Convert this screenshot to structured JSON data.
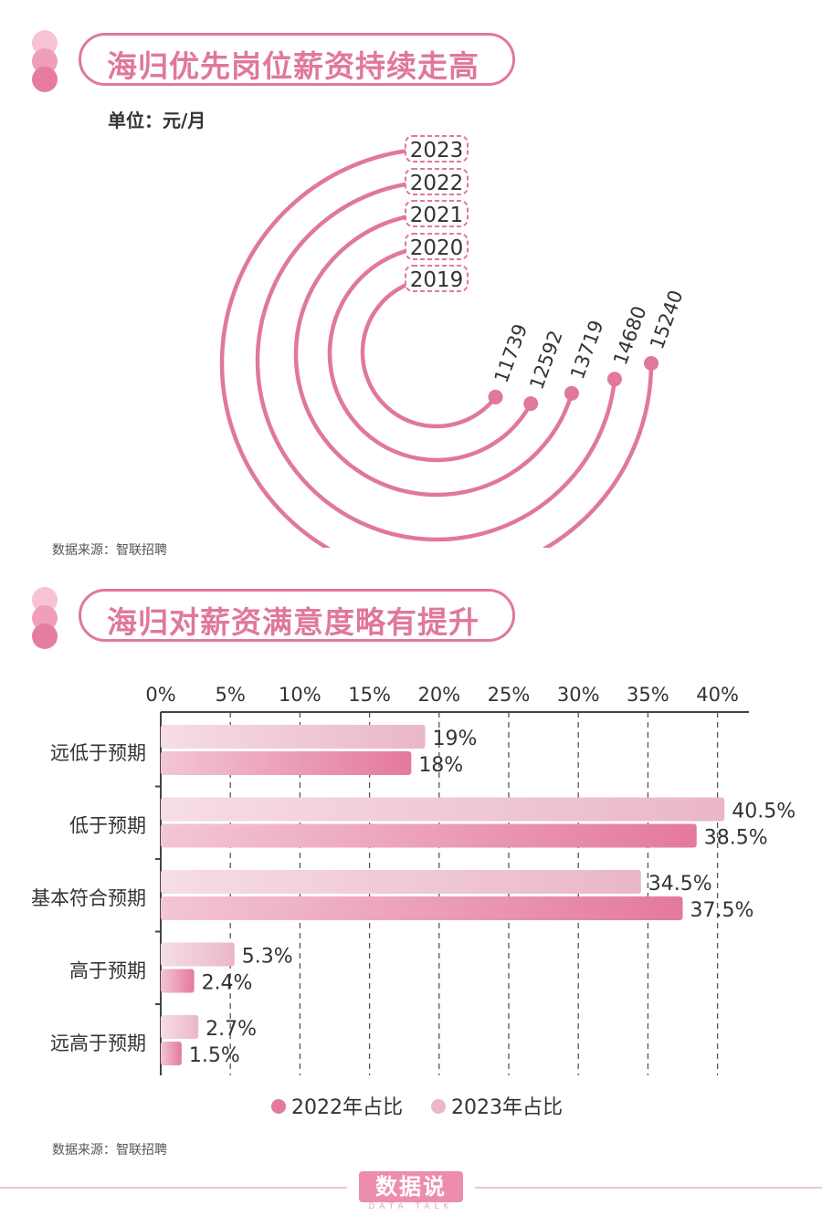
{
  "section1": {
    "title": "海归优先岗位薪资持续走高",
    "unit": "单位：元/月",
    "source": "数据来源：智联招聘"
  },
  "section2": {
    "title": "海归对薪资满意度略有提升",
    "source": "数据来源：智联招聘"
  },
  "brand": {
    "name": "数据说",
    "sub": "DATA TALK"
  },
  "colors": {
    "accent": "#e0789a",
    "light_bar": "#eab7c7",
    "dark_bar": "#e4799c",
    "dot1": "#f7c3d3",
    "dot2": "#ef9fb8",
    "dot3": "#e67c9e"
  },
  "chart_data": [
    {
      "type": "radial-bar",
      "series": [
        {
          "label": "2019",
          "value": 11739
        },
        {
          "label": "2020",
          "value": 12592
        },
        {
          "label": "2021",
          "value": 13719
        },
        {
          "label": "2022",
          "value": 14680
        },
        {
          "label": "2023",
          "value": 15240
        }
      ]
    },
    {
      "type": "bar",
      "orientation": "horizontal",
      "categories": [
        "远低于预期",
        "低于预期",
        "基本符合预期",
        "高于预期",
        "远高于预期"
      ],
      "series": [
        {
          "name": "2023年占比",
          "values": [
            19,
            40.5,
            34.5,
            5.3,
            2.7
          ],
          "labels": [
            "19%",
            "40.5%",
            "34.5%",
            "5.3%",
            "2.7%"
          ]
        },
        {
          "name": "2022年占比",
          "values": [
            18,
            38.5,
            37.5,
            2.4,
            1.5
          ],
          "labels": [
            "18%",
            "38.5%",
            "37.5%",
            "2.4%",
            "1.5%"
          ]
        }
      ],
      "xticks": [
        "0%",
        "5%",
        "10%",
        "15%",
        "20%",
        "25%",
        "30%",
        "35%",
        "40%"
      ],
      "xlim": [
        0,
        42
      ],
      "grid": "dashed vertical",
      "legend": [
        "2022年占比",
        "2023年占比"
      ],
      "legend_position": "bottom"
    }
  ]
}
